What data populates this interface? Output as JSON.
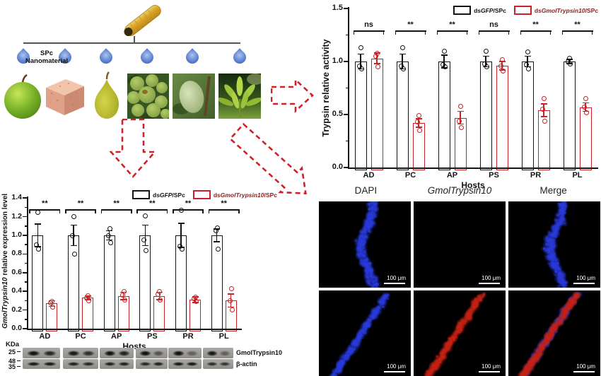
{
  "figure": {
    "background": "#ffffff",
    "accent_red": "#c9232a",
    "axis_color": "#141414"
  },
  "diagram": {
    "spc_label_lines": [
      "SPc",
      "Nanomaterial"
    ],
    "droplet_count": 6,
    "host_tiles": [
      "green-apple",
      "artificial-diet-cube",
      "pear",
      "green-fruit-cluster",
      "green-stone-fruit",
      "host-plant-shoot"
    ]
  },
  "chart_data": [
    {
      "id": "trypsin-activity",
      "type": "bar",
      "title": "",
      "xlabel": "Hosts",
      "ylabel_parts": [
        [
          "Trypsin relative activity",
          false
        ]
      ],
      "ylim": [
        0,
        1.5
      ],
      "ytick_step": 0.5,
      "minor_step": 0.25,
      "categories": [
        "AD",
        "PC",
        "AP",
        "PS",
        "PR",
        "PL"
      ],
      "series": [
        {
          "name_parts": [
            [
              "ds",
              false
            ],
            [
              "GFP",
              true
            ],
            [
              "/SPc",
              false
            ]
          ],
          "color": "#141414",
          "label_color": "#141414",
          "values": [
            1.0,
            1.0,
            1.0,
            1.0,
            1.0,
            1.0
          ],
          "errors": [
            0.07,
            0.07,
            0.06,
            0.05,
            0.05,
            0.02
          ],
          "points": [
            [
              1.13,
              0.96,
              0.93
            ],
            [
              1.13,
              0.96,
              0.93
            ],
            [
              1.1,
              0.97,
              0.95
            ],
            [
              1.1,
              0.98,
              0.95
            ],
            [
              1.09,
              0.97,
              0.93
            ],
            [
              1.03,
              1.0,
              0.98
            ]
          ]
        },
        {
          "name_parts": [
            [
              "ds",
              false
            ],
            [
              "GmolTrypsin10",
              true
            ],
            [
              "/SPc",
              false
            ]
          ],
          "color": "#c9232a",
          "label_color": "#8b2222",
          "values": [
            1.03,
            0.42,
            0.47,
            0.96,
            0.54,
            0.57
          ],
          "errors": [
            0.05,
            0.04,
            0.06,
            0.04,
            0.06,
            0.04
          ],
          "points": [
            [
              1.08,
              1.05,
              0.95
            ],
            [
              0.49,
              0.43,
              0.35
            ],
            [
              0.58,
              0.44,
              0.38
            ],
            [
              1.02,
              0.96,
              0.91
            ],
            [
              0.65,
              0.55,
              0.44
            ],
            [
              0.65,
              0.57,
              0.52
            ]
          ]
        }
      ],
      "significance": [
        "ns",
        "**",
        "**",
        "ns",
        "**",
        "**"
      ]
    },
    {
      "id": "gmoltrypsin10-expression",
      "type": "bar",
      "title": "",
      "xlabel": "Hosts",
      "ylabel_parts": [
        [
          "GmolTrypsin10",
          true
        ],
        [
          " relative expression level",
          false
        ]
      ],
      "ylim": [
        0,
        1.4
      ],
      "ytick_step": 0.2,
      "minor_step": 0.1,
      "categories": [
        "AD",
        "PC",
        "AP",
        "PS",
        "PR",
        "PL"
      ],
      "series": [
        {
          "name_parts": [
            [
              "ds",
              false
            ],
            [
              "GFP",
              true
            ],
            [
              "/SPc",
              false
            ]
          ],
          "color": "#141414",
          "label_color": "#141414",
          "values": [
            1.0,
            1.0,
            1.0,
            1.0,
            1.0,
            1.0
          ],
          "errors": [
            0.12,
            0.11,
            0.05,
            0.11,
            0.13,
            0.07
          ],
          "points": [
            [
              1.25,
              0.9,
              0.85
            ],
            [
              1.2,
              1.0,
              0.8
            ],
            [
              1.07,
              1.0,
              0.92
            ],
            [
              1.21,
              0.95,
              0.84
            ],
            [
              1.27,
              0.88,
              0.85
            ],
            [
              1.08,
              1.05,
              0.85
            ]
          ]
        },
        {
          "name_parts": [
            [
              "ds",
              false
            ],
            [
              "GmolTrypsin10",
              true
            ],
            [
              "/SPc",
              false
            ]
          ],
          "color": "#c9232a",
          "label_color": "#8b2222",
          "values": [
            0.27,
            0.33,
            0.35,
            0.35,
            0.31,
            0.3
          ],
          "errors": [
            0.03,
            0.02,
            0.04,
            0.04,
            0.03,
            0.07
          ],
          "points": [
            [
              0.29,
              0.28,
              0.23
            ],
            [
              0.35,
              0.33,
              0.3
            ],
            [
              0.4,
              0.36,
              0.31
            ],
            [
              0.4,
              0.37,
              0.31
            ],
            [
              0.34,
              0.32,
              0.29
            ],
            [
              0.43,
              0.3,
              0.2
            ]
          ]
        }
      ],
      "significance": [
        "**",
        "**",
        "**",
        "**",
        "**",
        "**"
      ]
    }
  ],
  "western_blot": {
    "unit_label": "KDa",
    "markers": [
      {
        "label": "25",
        "y": 12
      },
      {
        "label": "48",
        "y": 25
      },
      {
        "label": "35",
        "y": 33
      }
    ],
    "rows": [
      {
        "label": "GmolTrypsin10",
        "lane_intensities": [
          [
            0.95,
            0.8
          ],
          [
            0.9,
            0.75
          ],
          [
            0.95,
            0.85
          ],
          [
            0.95,
            0.5
          ],
          [
            0.95,
            0.4
          ],
          [
            0.9,
            0.4
          ]
        ]
      },
      {
        "label": "β-actin",
        "lane_intensities": [
          [
            0.9,
            0.9
          ],
          [
            0.85,
            0.8
          ],
          [
            0.85,
            0.85
          ],
          [
            0.8,
            0.85
          ],
          [
            0.9,
            0.9
          ],
          [
            0.75,
            0.7
          ]
        ]
      }
    ]
  },
  "microscopy": {
    "column_headers": [
      {
        "text": "DAPI",
        "italic": false
      },
      {
        "text": "GmolTrypsin10",
        "italic": true
      },
      {
        "text": "Merge",
        "italic": false
      }
    ],
    "scale_bar_text": "100 μm",
    "channel_colors": {
      "blue": "#2b3cdb",
      "red": "#c52416"
    },
    "panels": [
      {
        "row": 0,
        "col": 0,
        "channels": [
          "blue"
        ],
        "band": "vertical"
      },
      {
        "row": 0,
        "col": 1,
        "channels": [],
        "band": "none"
      },
      {
        "row": 0,
        "col": 2,
        "channels": [
          "blue"
        ],
        "band": "vertical"
      },
      {
        "row": 1,
        "col": 0,
        "channels": [
          "blue"
        ],
        "band": "diagonal"
      },
      {
        "row": 1,
        "col": 1,
        "channels": [
          "red"
        ],
        "band": "diagonal"
      },
      {
        "row": 1,
        "col": 2,
        "channels": [
          "blue",
          "red"
        ],
        "band": "diagonal"
      }
    ]
  }
}
